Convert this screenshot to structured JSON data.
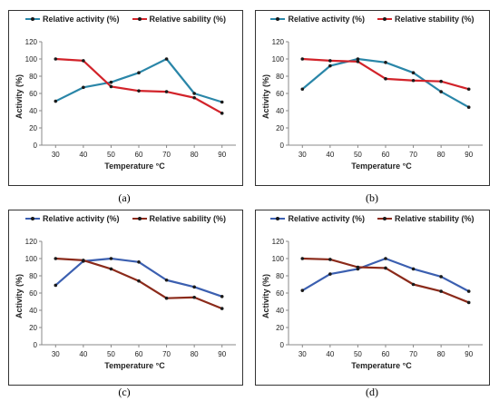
{
  "chart_data": [
    {
      "type": "line",
      "caption": "(a)",
      "x": [
        30,
        40,
        50,
        60,
        70,
        80,
        90
      ],
      "xlabel": "Temperature °C",
      "ylabel": "Activity (%)",
      "ylim": [
        0,
        120
      ],
      "yticks": [
        0,
        20,
        40,
        60,
        80,
        100,
        120
      ],
      "legend_position": "top",
      "series": [
        {
          "name": "Relative activity (%)",
          "color": "#2a86a8",
          "values": [
            51,
            67,
            73,
            84,
            100,
            60,
            50
          ]
        },
        {
          "name": "Relative sability (%)",
          "color": "#d2232a",
          "values": [
            100,
            98,
            68,
            63,
            62,
            55,
            37
          ]
        }
      ]
    },
    {
      "type": "line",
      "caption": "(b)",
      "x": [
        30,
        40,
        50,
        60,
        70,
        80,
        90
      ],
      "xlabel": "Temperature °C",
      "ylabel": "Activity (%)",
      "ylim": [
        0,
        120
      ],
      "yticks": [
        0,
        20,
        40,
        60,
        80,
        100,
        120
      ],
      "legend_position": "top",
      "series": [
        {
          "name": "Relative activity (%)",
          "color": "#2a86a8",
          "values": [
            65,
            92,
            100,
            96,
            84,
            62,
            44
          ]
        },
        {
          "name": "Relative stability (%)",
          "color": "#d2232a",
          "values": [
            100,
            98,
            97,
            77,
            75,
            74,
            65
          ]
        }
      ]
    },
    {
      "type": "line",
      "caption": "(c)",
      "x": [
        30,
        40,
        50,
        60,
        70,
        80,
        90
      ],
      "xlabel": "Temperature °C",
      "ylabel": "Activity (%)",
      "ylim": [
        0,
        120
      ],
      "yticks": [
        0,
        20,
        40,
        60,
        80,
        100,
        120
      ],
      "legend_position": "top",
      "series": [
        {
          "name": "Relative activity (%)",
          "color": "#3b5fb0",
          "values": [
            69,
            97,
            100,
            96,
            75,
            67,
            56
          ]
        },
        {
          "name": "Relative sability (%)",
          "color": "#8b2a1a",
          "values": [
            100,
            98,
            88,
            74,
            54,
            55,
            42
          ]
        }
      ]
    },
    {
      "type": "line",
      "caption": "(d)",
      "x": [
        30,
        40,
        50,
        60,
        70,
        80,
        90
      ],
      "xlabel": "Temperature °C",
      "ylabel": "Activity (%)",
      "ylim": [
        0,
        120
      ],
      "yticks": [
        0,
        20,
        40,
        60,
        80,
        100,
        120
      ],
      "legend_position": "top",
      "series": [
        {
          "name": "Relative activity (%)",
          "color": "#3b5fb0",
          "values": [
            63,
            82,
            88,
            100,
            88,
            79,
            62
          ]
        },
        {
          "name": "Relative stability (%)",
          "color": "#8b2a1a",
          "values": [
            100,
            99,
            90,
            89,
            70,
            62,
            49
          ]
        }
      ]
    }
  ]
}
